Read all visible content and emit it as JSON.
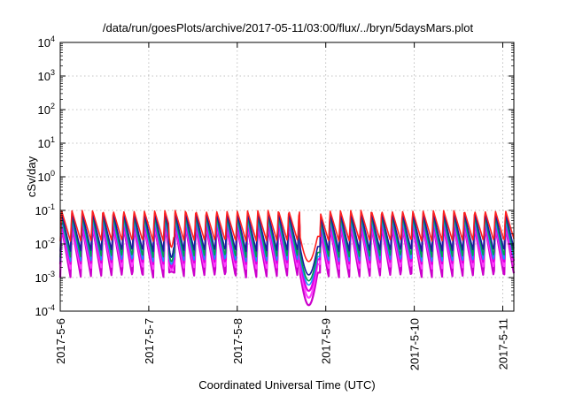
{
  "chart_data": {
    "type": "line",
    "title": "/data/run/goesPlots/archive/2017-05-11/03:00/flux/../bryn/5daysMars.plot",
    "xlabel": "Coordinated Universal Time (UTC)",
    "ylabel": "cSv/day",
    "yscale": "log",
    "ylim": [
      0.0001,
      10000
    ],
    "y_ticks": [
      {
        "base": "10",
        "exp": "-4"
      },
      {
        "base": "10",
        "exp": "-3"
      },
      {
        "base": "10",
        "exp": "-2"
      },
      {
        "base": "10",
        "exp": "-1"
      },
      {
        "base": "10",
        "exp": "0"
      },
      {
        "base": "10",
        "exp": "1"
      },
      {
        "base": "10",
        "exp": "2"
      },
      {
        "base": "10",
        "exp": "3"
      },
      {
        "base": "10",
        "exp": "4"
      }
    ],
    "xlim": [
      "2017-05-06 00:00",
      "2017-05-11 03:00"
    ],
    "x_ticks": [
      "2017-5-6",
      "2017-5-7",
      "2017-5-8",
      "2017-5-9",
      "2017-5-10",
      "2017-5-11"
    ],
    "grid": true,
    "pattern": {
      "description": "sawtooth spikes repeating roughly every 2.8 hours",
      "period_hours": 2.8,
      "peak_values": [
        0.1,
        0.085,
        0.07,
        0.055,
        0.045,
        0.04,
        0.035
      ],
      "trough_values": [
        0.012,
        0.006,
        0.004,
        0.003,
        0.0025,
        0.0018,
        0.001
      ],
      "gaps": [
        {
          "start": "2017-05-07 05:30",
          "end": "2017-05-07 07:00",
          "floor": [
            0.008,
            0.004,
            0.003,
            0.0025,
            0.002,
            0.0017,
            0.0015
          ]
        },
        {
          "start": "2017-05-08 17:00",
          "end": "2017-05-08 22:30",
          "floor": [
            0.003,
            0.0012,
            0.0008,
            0.0006,
            0.0004,
            0.00025,
            0.00015
          ]
        }
      ]
    },
    "series_colors": [
      "#ff2020",
      "#1a1aa0",
      "#00a050",
      "#1e90ff",
      "#e000e0",
      "#ff40ff",
      "#cc00cc"
    ]
  }
}
